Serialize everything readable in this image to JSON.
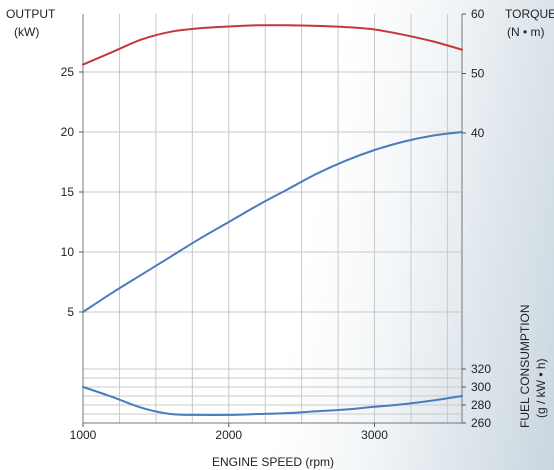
{
  "chart_data": {
    "type": "line",
    "left_axis": {
      "label_line1": "OUTPUT",
      "label_line2": "(kW)",
      "ticks": [
        5,
        10,
        15,
        20,
        25
      ],
      "tick_labels": [
        "5",
        "10",
        "15",
        "20",
        "25"
      ]
    },
    "right_axis_torque": {
      "label_line1": "TORQUE",
      "label_line2": "(N • m)",
      "ticks": [
        40,
        50,
        60
      ],
      "tick_labels": [
        "40",
        "50",
        "60"
      ]
    },
    "right_axis_fuel": {
      "label_line1": "FUEL CONSUMPTION",
      "label_line2": "(g / kW • h)",
      "ticks": [
        260,
        280,
        300,
        320
      ],
      "tick_labels": [
        "260",
        "280",
        "300",
        "320"
      ]
    },
    "x_axis": {
      "label": "ENGINE SPEED (rpm)",
      "ticks": [
        1000,
        2000,
        3000
      ],
      "tick_labels": [
        "1000",
        "2000",
        "3000"
      ],
      "range": [
        1000,
        3600
      ]
    },
    "grid": true,
    "series": [
      {
        "axis": "torque",
        "color": "#c0393b",
        "x": [
          1000,
          1200,
          1400,
          1600,
          1800,
          2000,
          2200,
          2400,
          2600,
          2800,
          3000,
          3200,
          3400,
          3600
        ],
        "y": [
          51.5,
          53.6,
          55.7,
          57.0,
          57.6,
          57.9,
          58.1,
          58.1,
          58.0,
          57.8,
          57.4,
          56.5,
          55.4,
          54.0
        ]
      },
      {
        "axis": "output",
        "color": "#4a7bbf",
        "x": [
          1000,
          1200,
          1400,
          1600,
          1800,
          2000,
          2200,
          2400,
          2600,
          2800,
          3000,
          3200,
          3400,
          3600
        ],
        "y": [
          5.0,
          6.6,
          8.1,
          9.6,
          11.1,
          12.5,
          13.9,
          15.2,
          16.5,
          17.6,
          18.5,
          19.2,
          19.7,
          20.0
        ]
      },
      {
        "axis": "fuel",
        "color": "#4a7bbf",
        "x": [
          1000,
          1200,
          1400,
          1600,
          1800,
          2000,
          2200,
          2400,
          2600,
          2800,
          3000,
          3200,
          3400,
          3600
        ],
        "y": [
          300,
          289,
          277,
          270,
          269,
          269,
          270,
          271,
          273,
          275,
          278,
          281,
          285,
          290
        ]
      }
    ]
  }
}
